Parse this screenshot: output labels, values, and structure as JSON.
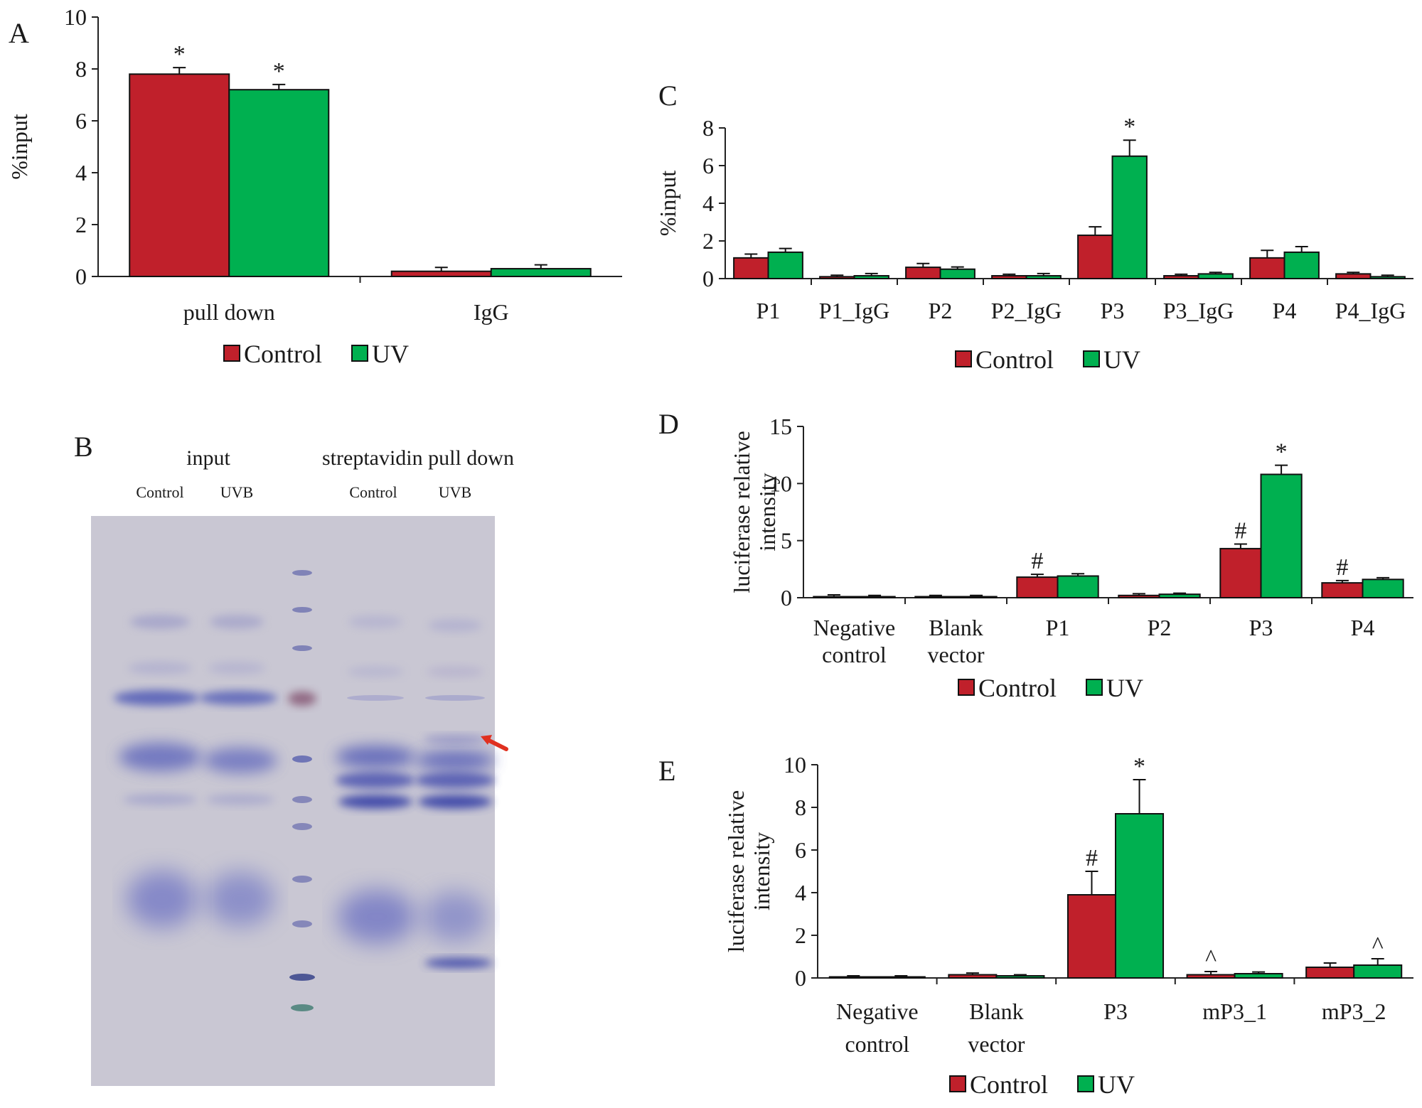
{
  "figure": {
    "legend": {
      "control_label": "Control",
      "uv_label": "UV"
    },
    "colors": {
      "control": "#c0202b",
      "uv": "#00b050"
    }
  },
  "chart_data": [
    {
      "panel": "A",
      "type": "bar",
      "ylabel": "%input",
      "ylim": [
        0,
        10
      ],
      "yticks": [
        0,
        2,
        4,
        6,
        8,
        10
      ],
      "categories": [
        "pull down",
        "IgG"
      ],
      "series": [
        {
          "name": "Control",
          "values": [
            7.8,
            0.2
          ],
          "errors": [
            0.25,
            0.15
          ],
          "marks": [
            "*",
            ""
          ]
        },
        {
          "name": "UV",
          "values": [
            7.2,
            0.3
          ],
          "errors": [
            0.2,
            0.15
          ],
          "marks": [
            "*",
            ""
          ]
        }
      ],
      "legend_position": "bottom"
    },
    {
      "panel": "C",
      "type": "bar",
      "ylabel": "%input",
      "ylim": [
        0,
        8
      ],
      "yticks": [
        0,
        2,
        4,
        6,
        8
      ],
      "categories": [
        "P1",
        "P1_IgG",
        "P2",
        "P2_IgG",
        "P3",
        "P3_IgG",
        "P4",
        "P4_IgG"
      ],
      "series": [
        {
          "name": "Control",
          "values": [
            1.1,
            0.1,
            0.6,
            0.15,
            2.3,
            0.15,
            1.1,
            0.25
          ],
          "errors": [
            0.2,
            0.08,
            0.2,
            0.08,
            0.45,
            0.08,
            0.4,
            0.08
          ],
          "marks": [
            "",
            "",
            "",
            "",
            "",
            "",
            "",
            ""
          ]
        },
        {
          "name": "UV",
          "values": [
            1.4,
            0.15,
            0.5,
            0.15,
            6.5,
            0.25,
            1.4,
            0.1
          ],
          "errors": [
            0.2,
            0.12,
            0.12,
            0.12,
            0.85,
            0.08,
            0.3,
            0.08
          ],
          "marks": [
            "",
            "",
            "",
            "",
            "*",
            "",
            "",
            ""
          ]
        }
      ],
      "legend_position": "bottom"
    },
    {
      "panel": "D",
      "type": "bar",
      "ylabel": [
        "luciferase relative",
        "intensity"
      ],
      "ylim": [
        0,
        15
      ],
      "yticks": [
        0,
        5,
        10,
        15
      ],
      "categories": [
        [
          "Negative",
          "control"
        ],
        [
          "Blank",
          "vector"
        ],
        [
          "P1"
        ],
        [
          "P2"
        ],
        [
          "P3"
        ],
        [
          "P4"
        ]
      ],
      "series": [
        {
          "name": "Control",
          "values": [
            0.05,
            0.05,
            1.8,
            0.2,
            4.3,
            1.3
          ],
          "errors": [
            0.2,
            0.15,
            0.25,
            0.15,
            0.4,
            0.2
          ],
          "marks": [
            "",
            "",
            "#",
            "",
            "#",
            "#"
          ]
        },
        {
          "name": "UV",
          "values": [
            0.05,
            0.05,
            1.9,
            0.3,
            10.8,
            1.6
          ],
          "errors": [
            0.15,
            0.15,
            0.2,
            0.1,
            0.8,
            0.15
          ],
          "marks": [
            "",
            "",
            "",
            "",
            "*",
            ""
          ]
        }
      ],
      "legend_position": "bottom"
    },
    {
      "panel": "E",
      "type": "bar",
      "ylabel": [
        "luciferase relative",
        "intensity"
      ],
      "ylim": [
        0,
        10
      ],
      "yticks": [
        0,
        2,
        4,
        6,
        8,
        10
      ],
      "categories": [
        [
          "Negative",
          "control"
        ],
        [
          "Blank",
          "vector"
        ],
        [
          "P3"
        ],
        [
          "mP3_1"
        ],
        [
          "mP3_2"
        ]
      ],
      "series": [
        {
          "name": "Control",
          "values": [
            0.05,
            0.15,
            3.9,
            0.15,
            0.5
          ],
          "errors": [
            0.05,
            0.08,
            1.1,
            0.15,
            0.2
          ],
          "marks": [
            "",
            "",
            "#",
            "^",
            ""
          ]
        },
        {
          "name": "UV",
          "values": [
            0.05,
            0.1,
            7.7,
            0.2,
            0.6
          ],
          "errors": [
            0.05,
            0.05,
            1.6,
            0.08,
            0.3
          ],
          "marks": [
            "",
            "",
            "*",
            "",
            "^"
          ]
        }
      ],
      "legend_position": "bottom"
    }
  ],
  "gel": {
    "panel": "B",
    "group_labels": [
      "input",
      "streptavidin pull down"
    ],
    "lane_labels": [
      "Control",
      "UVB",
      "Control",
      "UVB"
    ],
    "arrow_color": "#e03020"
  }
}
